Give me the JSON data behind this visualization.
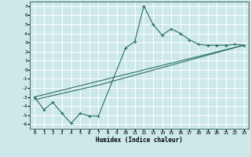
{
  "xlabel": "Humidex (Indice chaleur)",
  "xlim": [
    -0.5,
    23.5
  ],
  "ylim": [
    -6.5,
    7.5
  ],
  "bg_color": "#cce8e8",
  "grid_color": "#b0d4d4",
  "line_color": "#2a6e68",
  "line1_x": [
    0,
    1,
    2,
    3,
    4,
    5,
    6,
    7,
    10,
    11,
    12,
    13,
    14,
    15,
    16,
    17,
    18,
    19,
    20,
    21,
    22,
    23
  ],
  "line1_y": [
    -3.0,
    -4.4,
    -3.6,
    -4.8,
    -5.9,
    -4.8,
    -5.1,
    -5.1,
    2.4,
    3.1,
    7.0,
    5.0,
    3.8,
    4.5,
    4.0,
    3.3,
    2.8,
    2.7,
    2.7,
    2.7,
    2.8,
    2.7
  ],
  "line2_x": [
    0,
    23
  ],
  "line2_y": [
    -3.0,
    2.7
  ],
  "line3_x": [
    0,
    7,
    23
  ],
  "line3_y": [
    -3.3,
    -1.7,
    2.7
  ],
  "xticks": [
    0,
    1,
    2,
    3,
    4,
    5,
    6,
    7,
    8,
    9,
    10,
    11,
    12,
    13,
    14,
    15,
    16,
    17,
    18,
    19,
    20,
    21,
    22,
    23
  ],
  "yticks": [
    -6,
    -5,
    -4,
    -3,
    -2,
    -1,
    0,
    1,
    2,
    3,
    4,
    5,
    6,
    7
  ]
}
